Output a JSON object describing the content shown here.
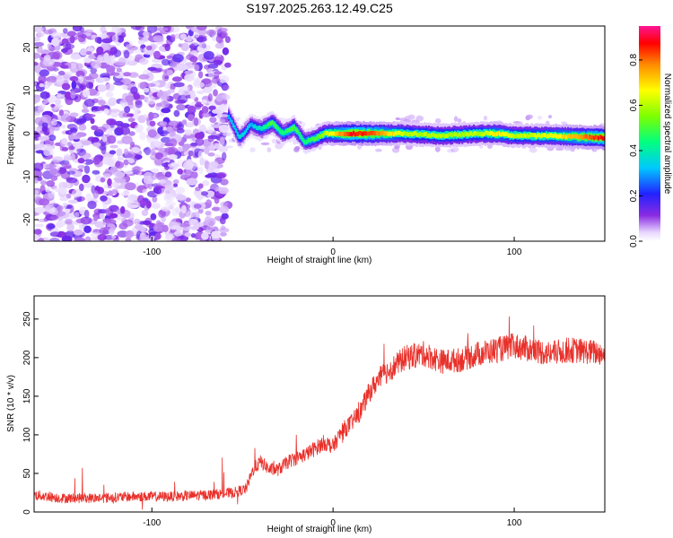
{
  "title": "S197.2025.263.12.49.C25",
  "chart_data": [
    {
      "type": "heatmap",
      "name": "spectrogram",
      "xlabel": "Height of straight line (km)",
      "ylabel": "Frequency (Hz)",
      "xlim": [
        -165,
        150
      ],
      "ylim": [
        -25,
        25
      ],
      "xticks": [
        -100,
        0,
        100
      ],
      "yticks": [
        -20,
        -10,
        0,
        10,
        20
      ],
      "colorbar": {
        "label": "Normalized spectral amplitude",
        "range": [
          0,
          0.95
        ],
        "ticks": [
          "0.0",
          "0.2",
          "0.4",
          "0.6",
          "0.8"
        ],
        "tick_values": [
          0,
          0.2,
          0.4,
          0.6,
          0.8
        ]
      },
      "noise_region_x": [
        -165,
        -58
      ],
      "signal_ridge": {
        "x": [
          -58,
          -52,
          -46,
          -40,
          -34,
          -28,
          -22,
          -16,
          -10,
          -5,
          0,
          10,
          20,
          40,
          60,
          80,
          90,
          100,
          120,
          150
        ],
        "freq": [
          4,
          -1,
          2,
          1,
          2.5,
          0,
          1.5,
          -2,
          -1,
          0,
          0,
          0,
          0,
          0,
          -0.5,
          0,
          0,
          -0.5,
          -0.5,
          -1
        ],
        "amplitude": [
          0.3,
          0.35,
          0.3,
          0.4,
          0.5,
          0.45,
          0.5,
          0.45,
          0.5,
          0.6,
          0.7,
          0.9,
          0.85,
          0.6,
          0.6,
          0.6,
          0.7,
          0.6,
          0.65,
          0.9
        ]
      }
    },
    {
      "type": "line",
      "name": "snr",
      "xlabel": "Height of straight line (km)",
      "ylabel": "SNR (10 * v/v)",
      "xlim": [
        -165,
        150
      ],
      "ylim": [
        0,
        280
      ],
      "xticks": [
        -100,
        0,
        100
      ],
      "yticks": [
        0,
        50,
        100,
        150,
        200,
        250
      ],
      "color": "#e8302a",
      "series": [
        {
          "name": "SNR",
          "x": [
            -165,
            -150,
            -130,
            -110,
            -90,
            -70,
            -55,
            -48,
            -44,
            -40,
            -35,
            -30,
            -25,
            -20,
            -15,
            -10,
            -5,
            0,
            5,
            10,
            15,
            20,
            25,
            30,
            40,
            50,
            60,
            70,
            80,
            90,
            100,
            110,
            120,
            130,
            140,
            150
          ],
          "values": [
            22,
            18,
            18,
            20,
            20,
            22,
            25,
            30,
            55,
            65,
            55,
            55,
            65,
            70,
            75,
            82,
            90,
            85,
            105,
            115,
            130,
            155,
            172,
            182,
            200,
            205,
            195,
            197,
            205,
            210,
            215,
            210,
            205,
            210,
            208,
            205
          ],
          "noise_amplitude": 14
        }
      ]
    }
  ]
}
